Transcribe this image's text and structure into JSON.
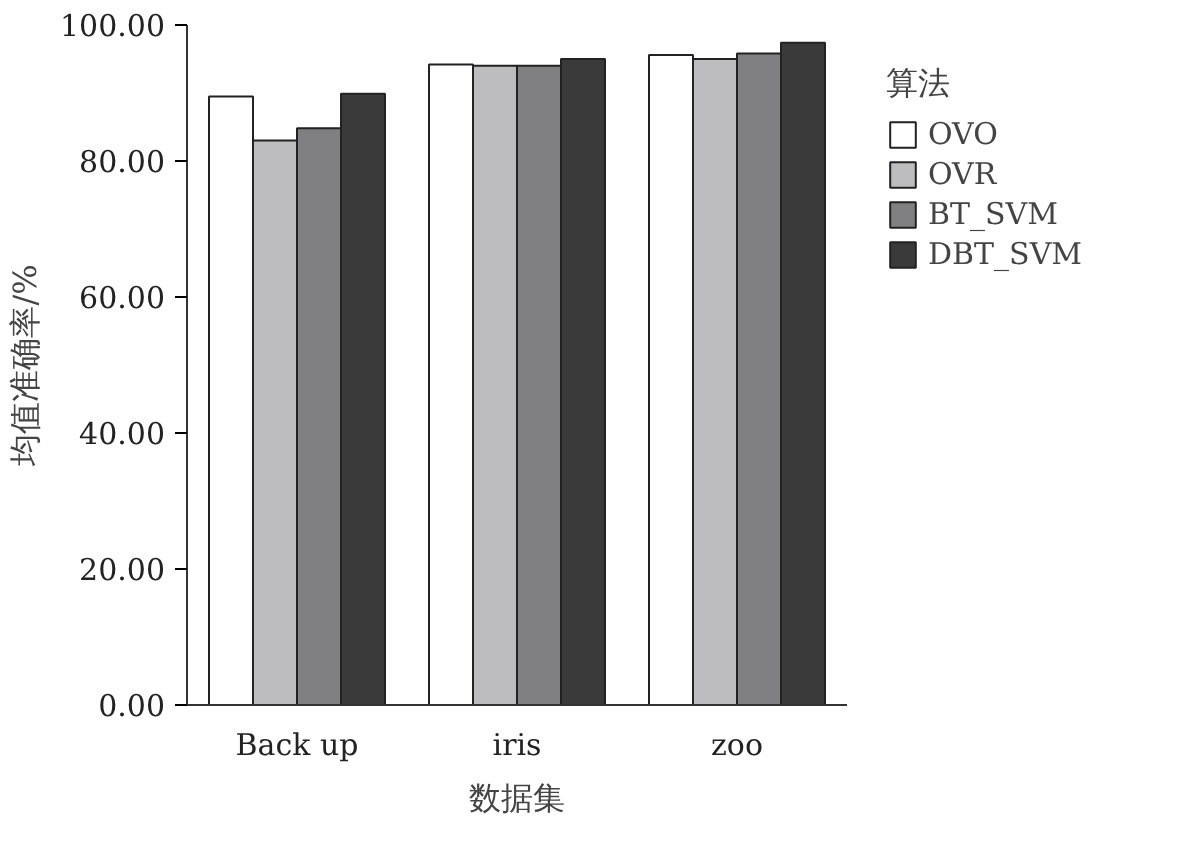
{
  "chart_data": {
    "type": "bar",
    "xlabel": "数据集",
    "ylabel": "均值准确率/%",
    "legend_title": "算法",
    "categories": [
      "Back up",
      "iris",
      "zoo"
    ],
    "series": [
      {
        "name": "OVO",
        "color": "#ffffff",
        "values": [
          89.5,
          94.2,
          95.6
        ]
      },
      {
        "name": "OVR",
        "color": "#bdbdbf",
        "values": [
          83.0,
          94.0,
          95.0
        ]
      },
      {
        "name": "BT_SVM",
        "color": "#808083",
        "values": [
          84.8,
          94.0,
          95.8
        ]
      },
      {
        "name": "DBT_SVM",
        "color": "#3a3a3a",
        "values": [
          89.9,
          95.0,
          97.4
        ]
      }
    ],
    "ylim": [
      0,
      100
    ],
    "yticks": [
      {
        "value": 0,
        "label": "0.00"
      },
      {
        "value": 20,
        "label": "20.00"
      },
      {
        "value": 40,
        "label": "40.00"
      },
      {
        "value": 60,
        "label": "60.00"
      },
      {
        "value": 80,
        "label": "80.00"
      },
      {
        "value": 100,
        "label": "100.00"
      }
    ],
    "grid": false,
    "legend": "top right"
  }
}
